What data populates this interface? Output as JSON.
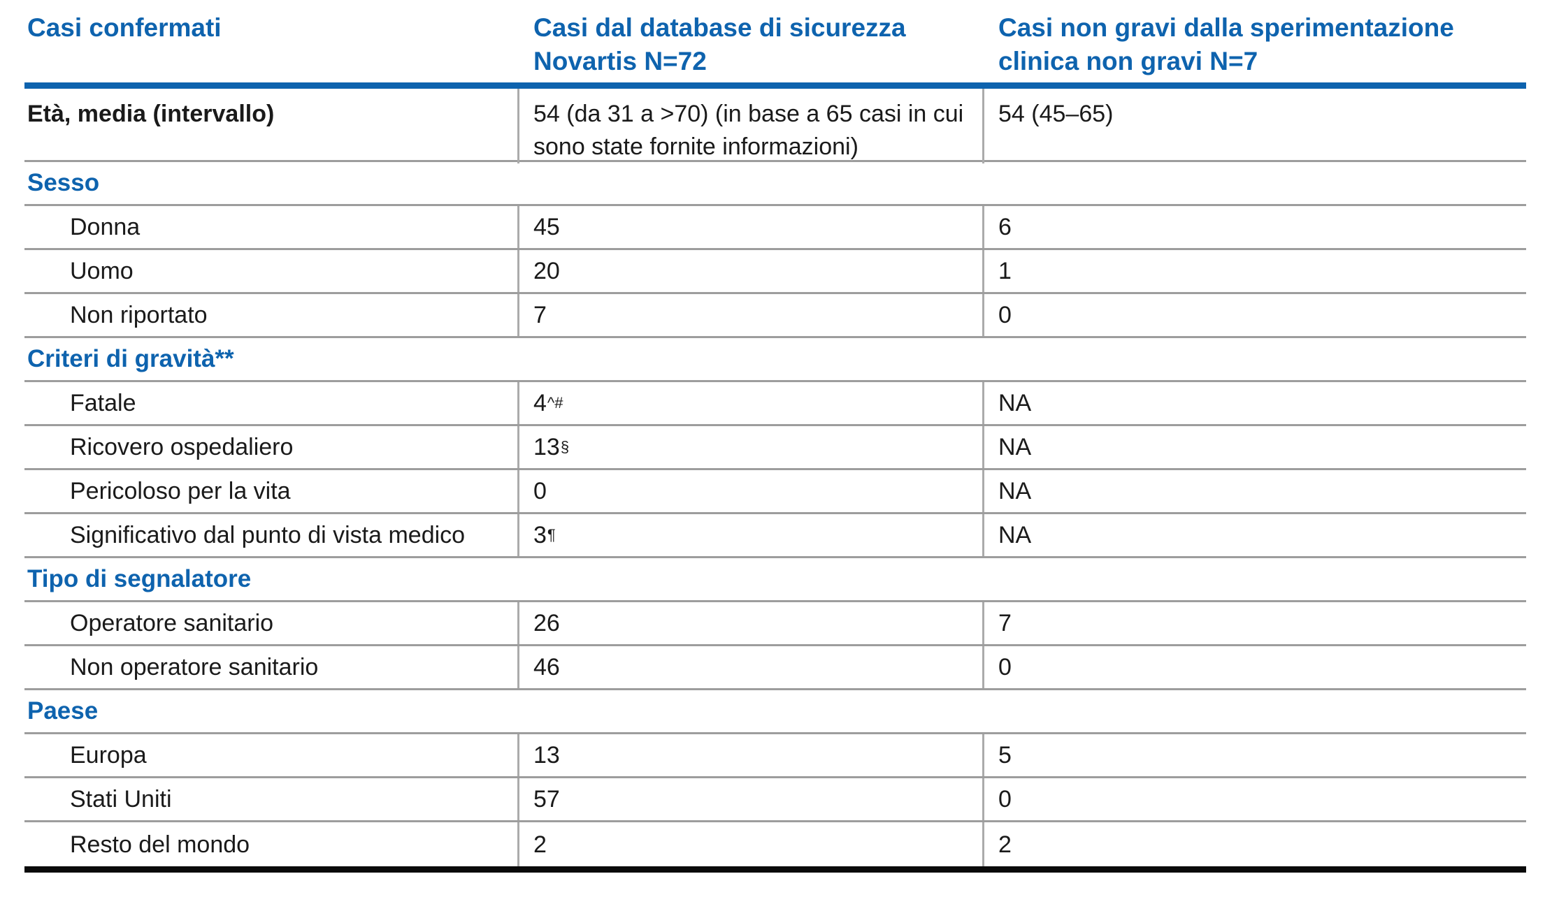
{
  "colors": {
    "accent_blue": "#0E63AE",
    "grid_gray": "#9d9d9d",
    "divider_gray": "#ababab",
    "bottom_black": "#0a0a0a",
    "text": "#1a1a1a"
  },
  "table": {
    "header": {
      "col1": "Casi confermati",
      "col2": "Casi dal database di sicurezza Novartis N=72",
      "col3": "Casi non gravi dalla sperimentazione clinica non gravi N=7"
    },
    "age_row": {
      "label": "Età, media (intervallo)",
      "novartis_db": "54 (da 31 a >70) (in base a 65 casi in cui sono state fornite informazioni)",
      "clinical_trial": "54 (45–65)"
    },
    "sections": [
      {
        "title": "Sesso",
        "rows": [
          {
            "label": "Donna",
            "v2": "45",
            "v2sup": "",
            "v3": "6"
          },
          {
            "label": "Uomo",
            "v2": "20",
            "v2sup": "",
            "v3": "1"
          },
          {
            "label": "Non riportato",
            "v2": "7",
            "v2sup": "",
            "v3": "0"
          }
        ]
      },
      {
        "title": "Criteri di gravità**",
        "rows": [
          {
            "label": "Fatale",
            "v2": "4",
            "v2sup": "^#",
            "v3": "NA"
          },
          {
            "label": "Ricovero ospedaliero",
            "v2": "13",
            "v2sup": "§",
            "v3": "NA"
          },
          {
            "label": "Pericoloso per la vita",
            "v2": "0",
            "v2sup": "",
            "v3": "NA"
          },
          {
            "label": "Significativo dal punto di vista medico",
            "v2": "3",
            "v2sup": "¶",
            "v3": "NA"
          }
        ]
      },
      {
        "title": "Tipo di segnalatore",
        "rows": [
          {
            "label": "Operatore sanitario",
            "v2": "26",
            "v2sup": "",
            "v3": "7"
          },
          {
            "label": "Non operatore sanitario",
            "v2": "46",
            "v2sup": "",
            "v3": "0"
          }
        ]
      },
      {
        "title": "Paese",
        "rows": [
          {
            "label": "Europa",
            "v2": "13",
            "v2sup": "",
            "v3": "5"
          },
          {
            "label": "Stati Uniti",
            "v2": "57",
            "v2sup": "",
            "v3": "0"
          },
          {
            "label": "Resto del mondo",
            "v2": "2",
            "v2sup": "",
            "v3": "2"
          }
        ]
      }
    ]
  }
}
